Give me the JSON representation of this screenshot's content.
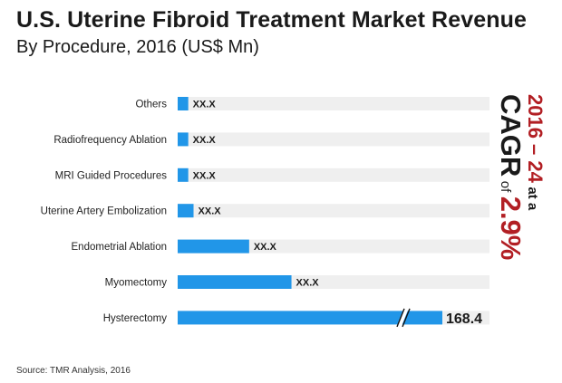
{
  "header": {
    "title": "U.S. Uterine Fibroid Treatment Market Revenue",
    "subtitle": "By Procedure, 2016 (US$ Mn)"
  },
  "cagr": {
    "years": "2016 – 24",
    "at": "at a",
    "label": "CAGR",
    "of": "of",
    "value": "2.9%"
  },
  "source": "Source: TMR Analysis, 2016",
  "colors": {
    "bar": "#2196e8",
    "track": "#efefef",
    "accent": "#b21f24"
  },
  "chart_data": {
    "type": "bar",
    "orientation": "horizontal",
    "axis_break": true,
    "categories": [
      "Others",
      "Radiofrequency Ablation",
      "MRI Guided Procedures",
      "Uterine Artery Embolization",
      "Endometrial Ablation",
      "Myomectomy",
      "Hysterectomy"
    ],
    "value_labels": [
      "XX.X",
      "XX.X",
      "XX.X",
      "XX.X",
      "XX.X",
      "XX.X",
      "168.4"
    ],
    "relative_values": [
      0.04,
      0.04,
      0.04,
      0.06,
      0.27,
      0.43,
      1.0
    ],
    "values": [
      null,
      null,
      null,
      null,
      null,
      null,
      168.4
    ]
  }
}
